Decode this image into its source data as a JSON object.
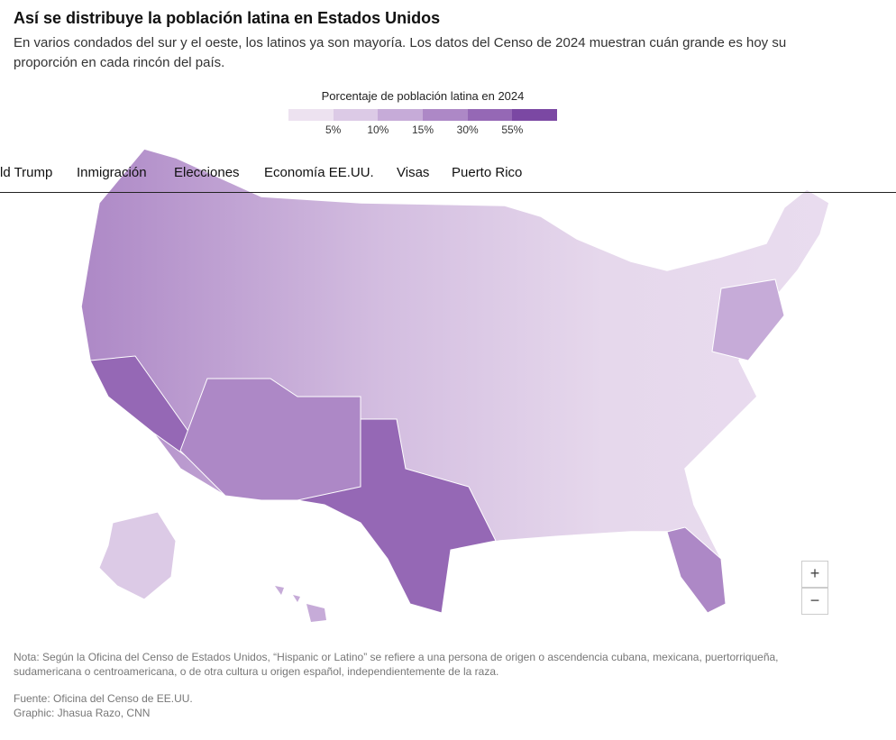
{
  "header": {
    "title": "Así se distribuye la población latina en Estados Unidos",
    "subtitle": "En varios condados del sur y el oeste, los latinos ya son mayoría. Los datos del Censo de 2024 muestran cuán grande es hoy su proporción en cada rincón del país."
  },
  "legend": {
    "title": "Porcentaje de población latina en 2024",
    "colors": [
      "#ede2f0",
      "#dccae6",
      "#c6abd8",
      "#ad88c6",
      "#9568b5",
      "#7b48a3"
    ],
    "labels": [
      "5%",
      "10%",
      "15%",
      "30%",
      "55%"
    ]
  },
  "nav": {
    "items": [
      "ld Trump",
      "Inmigración",
      "Elecciones",
      "Economía EE.UU.",
      "Visas",
      "Puerto Rico"
    ]
  },
  "controls": {
    "zoom_in": "+",
    "zoom_out": "−"
  },
  "notes": {
    "note": "Nota: Según la Oficina del Censo de Estados Unidos, “Hispanic or Latino” se refiere a una persona de origen o ascendencia cubana, mexicana, puertorriqueña, sudamericana o centroamericana, o de otra cultura u origen español, independientemente de la raza.",
    "source": "Fuente: Oficina del Censo de EE.UU.",
    "credit": "Graphic: Jhasua Razo, CNN"
  }
}
